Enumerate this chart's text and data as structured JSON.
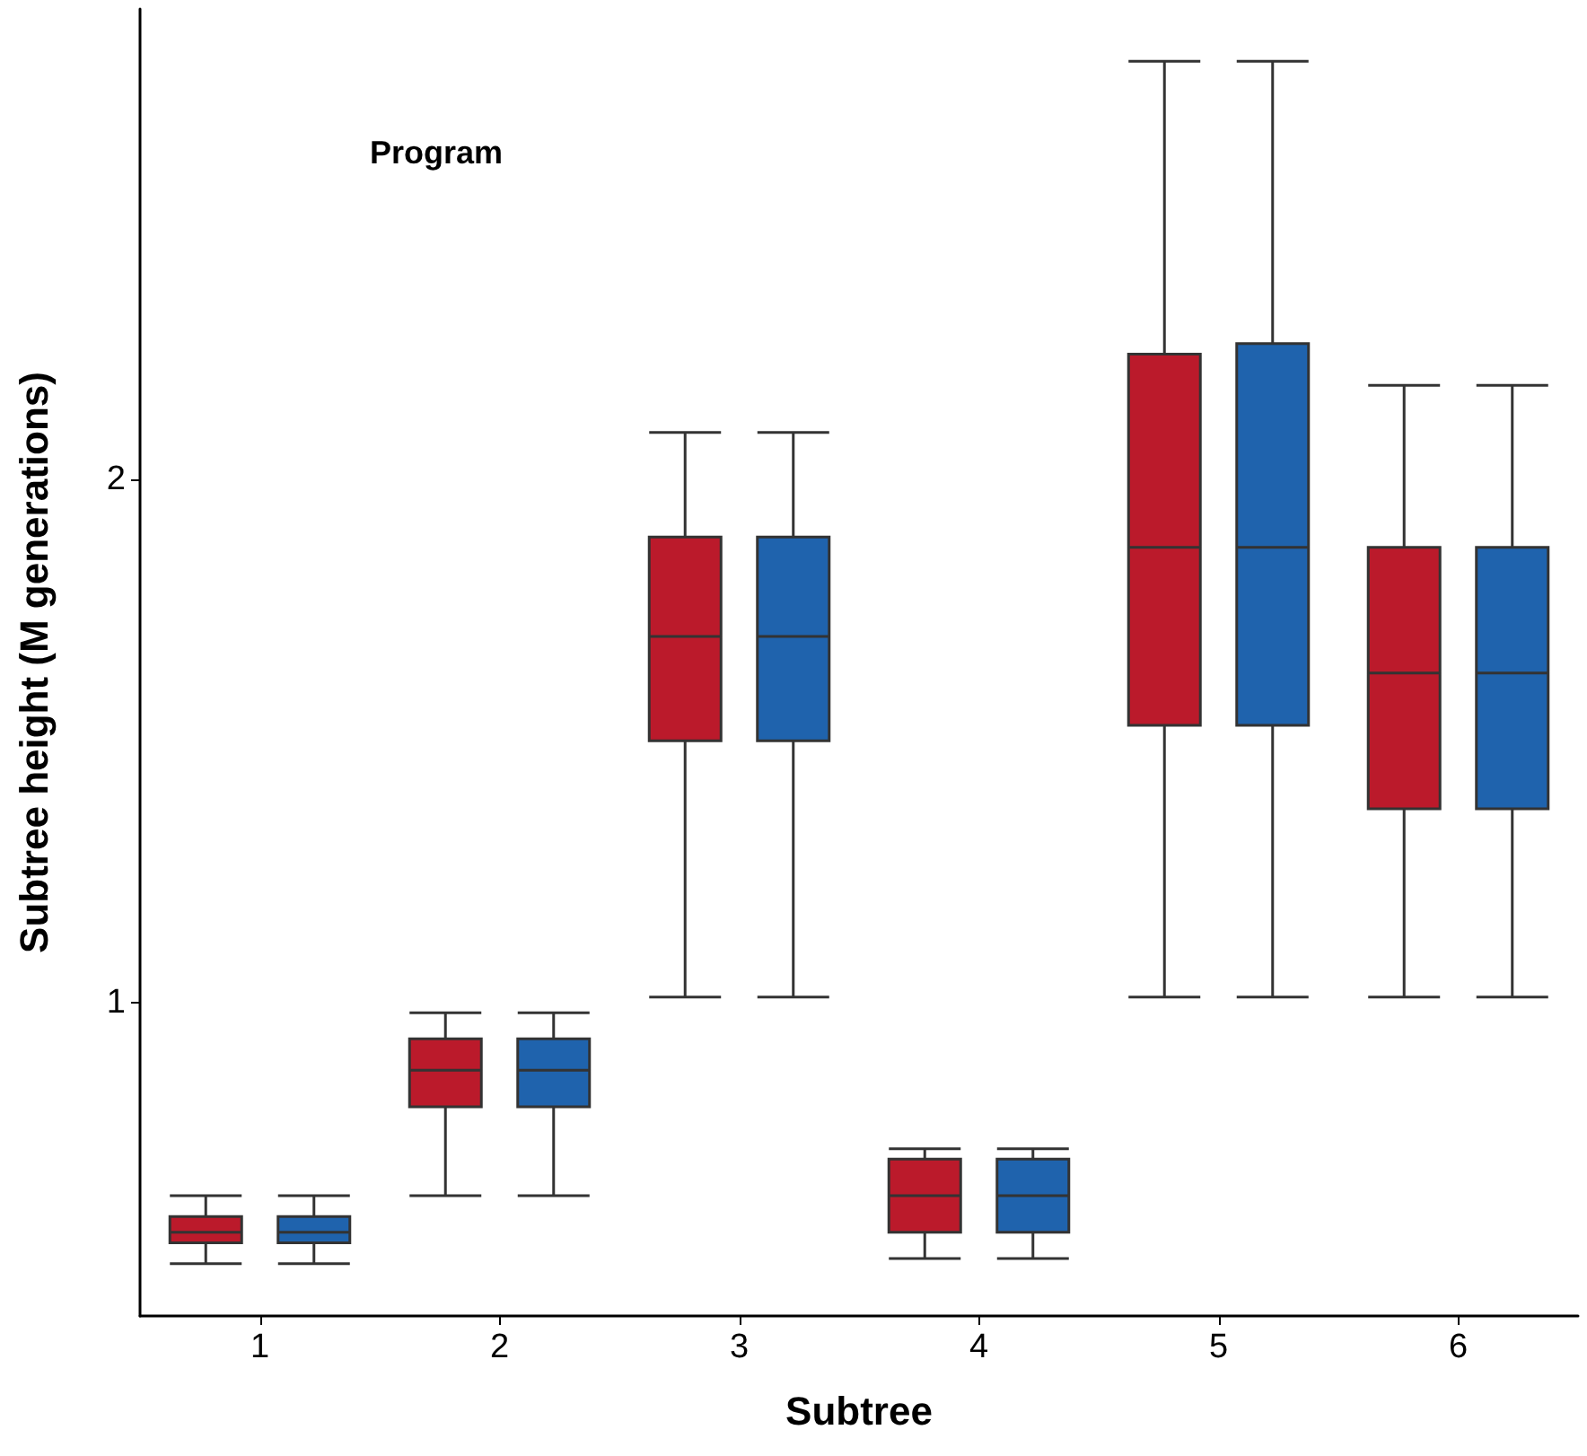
{
  "chart_data": {
    "type": "box",
    "xlabel": "Subtree",
    "ylabel": "Subtree height (M generations)",
    "legend_title": "Program",
    "grid": false,
    "categories": [
      "1",
      "2",
      "3",
      "4",
      "5",
      "6"
    ],
    "ylim": [
      0.4,
      2.9
    ],
    "yticks": [
      1,
      2
    ],
    "series": [
      {
        "color": "#bb1a2b",
        "boxes": [
          {
            "low": 0.5,
            "q1": 0.54,
            "median": 0.56,
            "q3": 0.59,
            "high": 0.63
          },
          {
            "low": 0.63,
            "q1": 0.8,
            "median": 0.87,
            "q3": 0.93,
            "high": 0.98
          },
          {
            "low": 1.01,
            "q1": 1.5,
            "median": 1.7,
            "q3": 1.89,
            "high": 2.09
          },
          {
            "low": 0.51,
            "q1": 0.56,
            "median": 0.63,
            "q3": 0.7,
            "high": 0.72
          },
          {
            "low": 1.01,
            "q1": 1.53,
            "median": 1.87,
            "q3": 2.24,
            "high": 2.8
          },
          {
            "low": 1.01,
            "q1": 1.37,
            "median": 1.63,
            "q3": 1.87,
            "high": 2.18
          }
        ]
      },
      {
        "color": "#1f63ad",
        "boxes": [
          {
            "low": 0.5,
            "q1": 0.54,
            "median": 0.56,
            "q3": 0.59,
            "high": 0.63
          },
          {
            "low": 0.63,
            "q1": 0.8,
            "median": 0.87,
            "q3": 0.93,
            "high": 0.98
          },
          {
            "low": 1.01,
            "q1": 1.5,
            "median": 1.7,
            "q3": 1.89,
            "high": 2.09
          },
          {
            "low": 0.51,
            "q1": 0.56,
            "median": 0.63,
            "q3": 0.7,
            "high": 0.72
          },
          {
            "low": 1.01,
            "q1": 1.53,
            "median": 1.87,
            "q3": 2.26,
            "high": 2.8
          },
          {
            "low": 1.01,
            "q1": 1.37,
            "median": 1.63,
            "q3": 1.87,
            "high": 2.18
          }
        ]
      }
    ]
  }
}
